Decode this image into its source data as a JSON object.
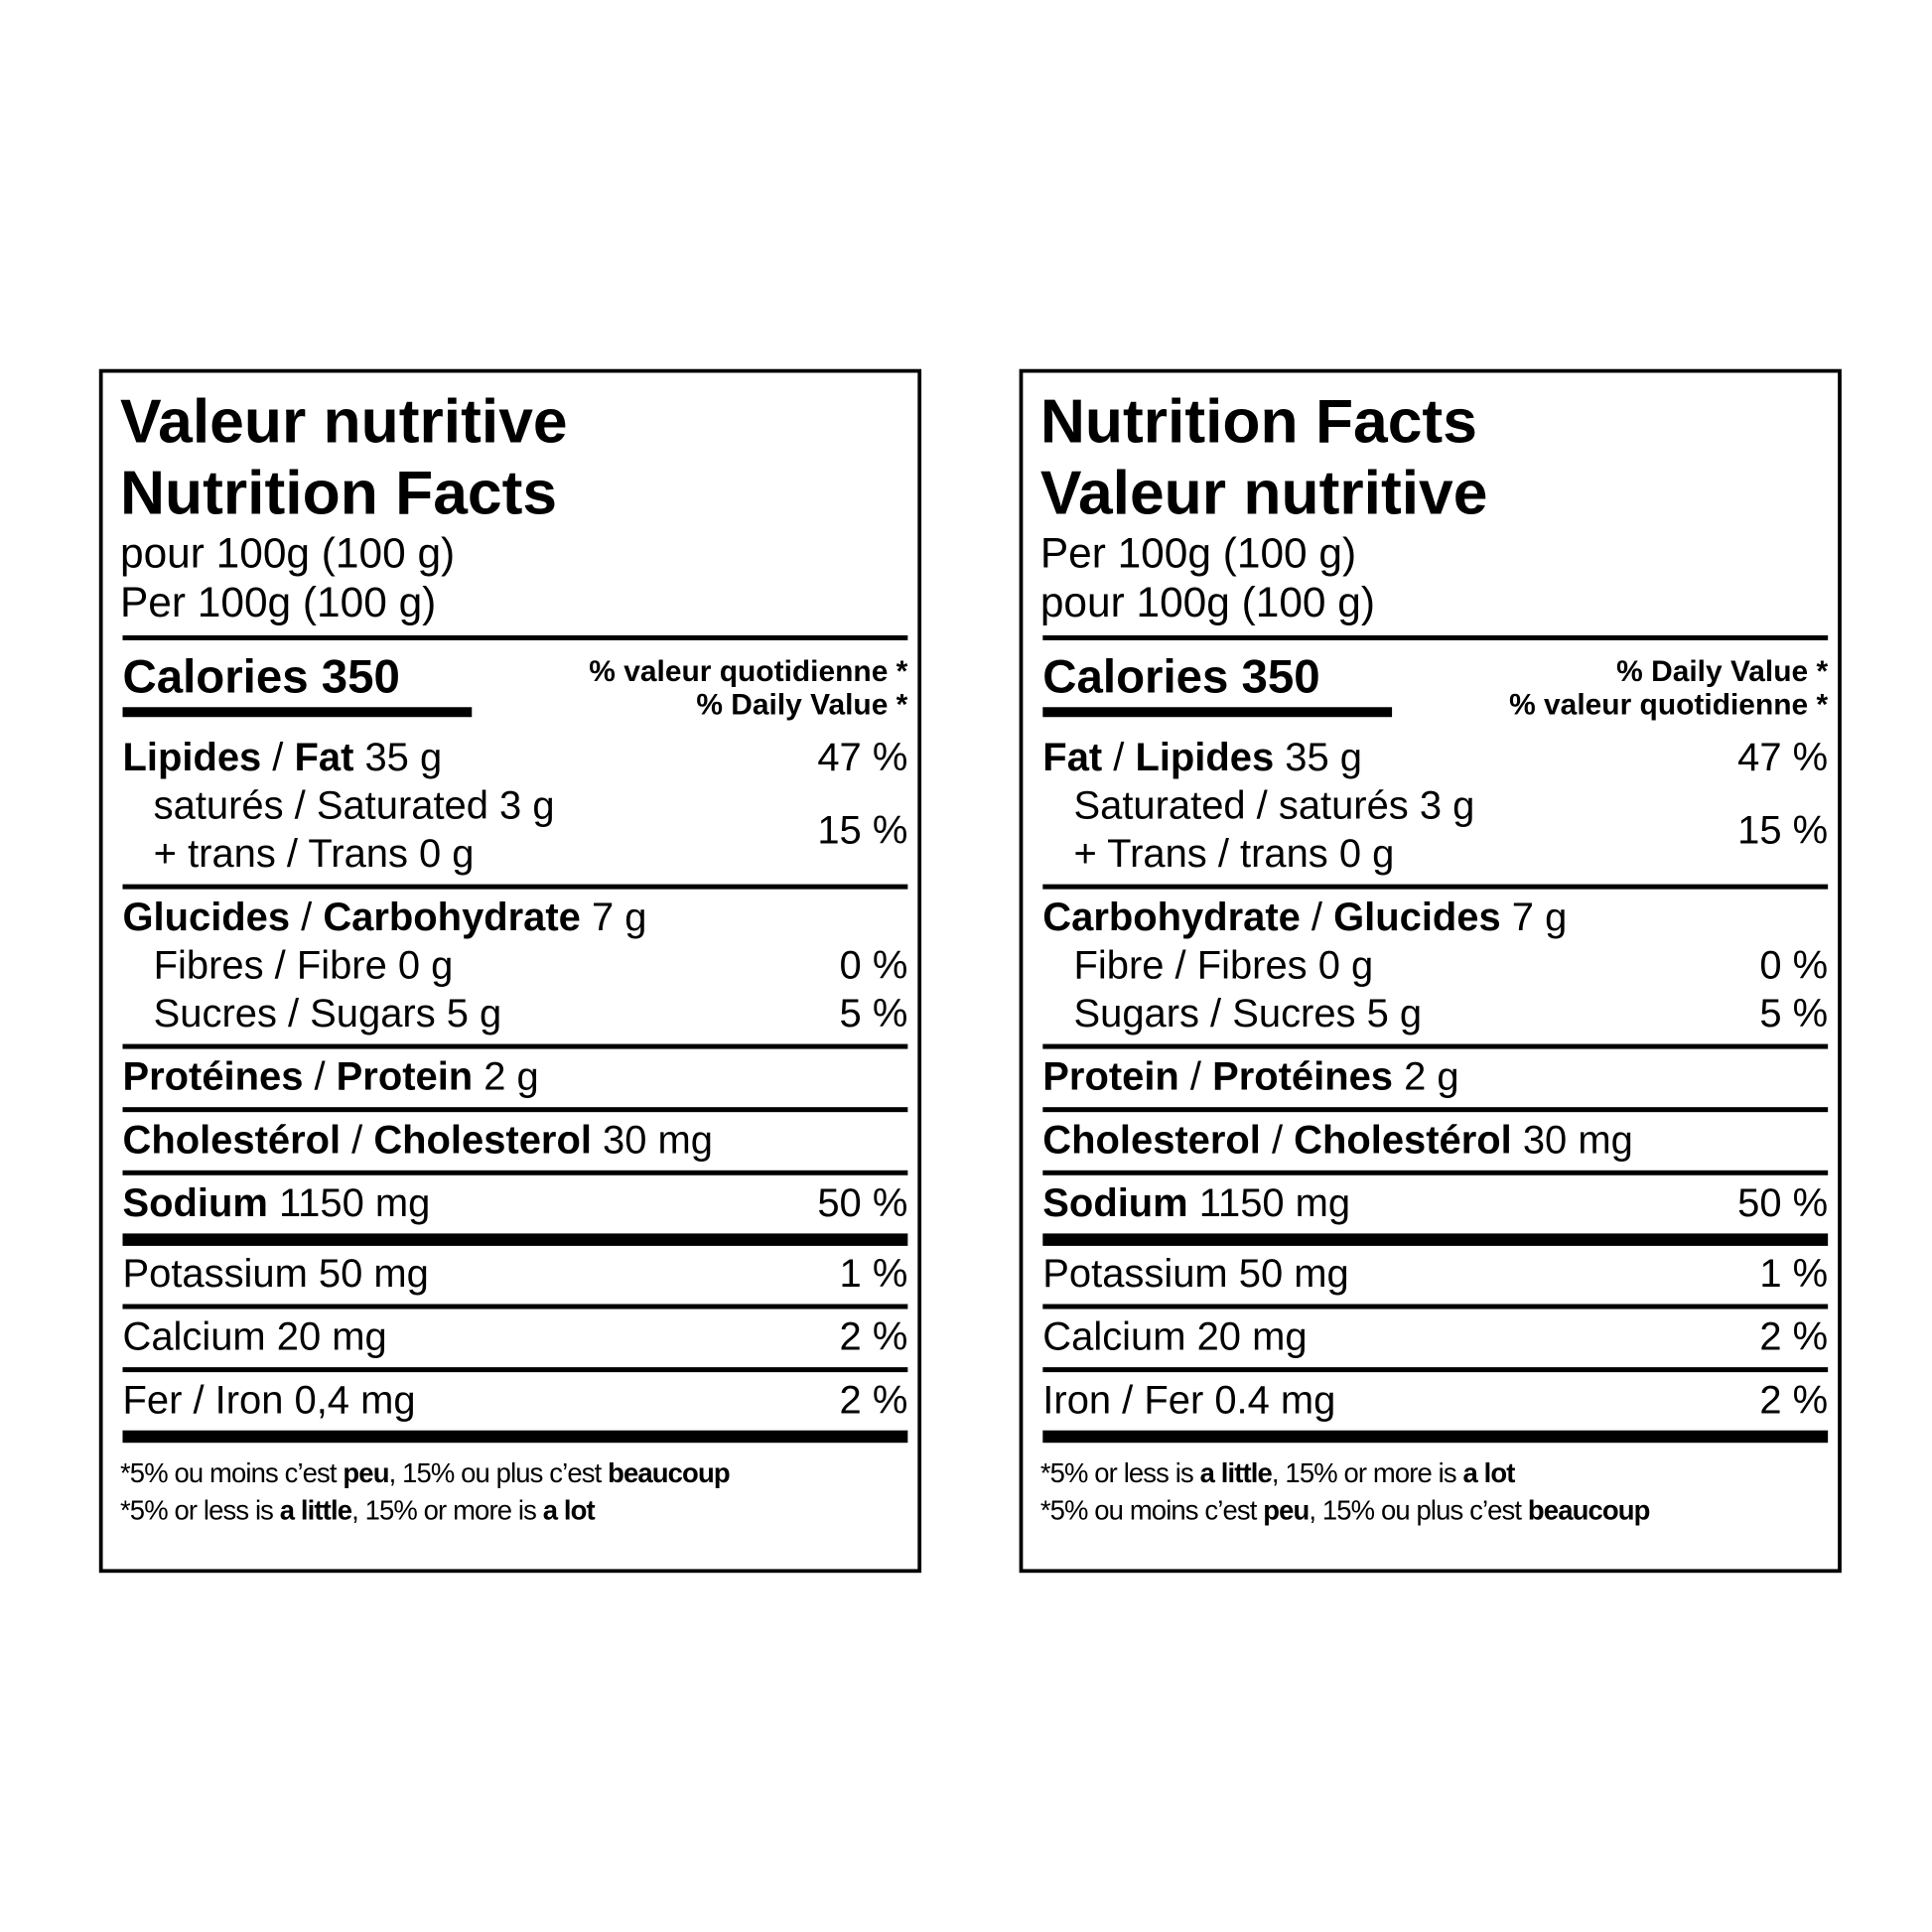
{
  "labels": [
    {
      "title": [
        "Valeur nutritive",
        "Nutrition Facts"
      ],
      "serving": [
        "pour 100g (100 g)",
        "Per 100g (100 g)"
      ],
      "calories": "Calories 350",
      "dv_header": [
        "% valeur quotidienne *",
        "% Daily Value *"
      ],
      "sections": [
        {
          "rule": "thin",
          "entries": [
            {
              "lines": [
                [
                  {
                    "text": "Lipides",
                    "bold": true
                  },
                  {
                    "text": " / "
                  },
                  {
                    "text": "Fat",
                    "bold": true
                  },
                  {
                    "text": " 35 g"
                  }
                ]
              ],
              "dv": "47 %"
            },
            {
              "indent": true,
              "lines": [
                [
                  {
                    "text": "saturés / Saturated 3 g"
                  }
                ],
                [
                  {
                    "text": "+ trans / Trans 0 g"
                  }
                ]
              ],
              "dv": "15 %"
            }
          ]
        },
        {
          "rule": "thin",
          "entries": [
            {
              "lines": [
                [
                  {
                    "text": "Glucides",
                    "bold": true
                  },
                  {
                    "text": " / "
                  },
                  {
                    "text": "Carbohydrate",
                    "bold": true
                  },
                  {
                    "text": " 7 g"
                  }
                ]
              ]
            },
            {
              "indent": true,
              "lines": [
                [
                  {
                    "text": "Fibres / Fibre 0 g"
                  }
                ]
              ],
              "dv": "0 %"
            },
            {
              "indent": true,
              "lines": [
                [
                  {
                    "text": "Sucres / Sugars 5 g"
                  }
                ]
              ],
              "dv": "5 %"
            }
          ]
        },
        {
          "rule": "thin",
          "entries": [
            {
              "lines": [
                [
                  {
                    "text": "Protéines",
                    "bold": true
                  },
                  {
                    "text": " / "
                  },
                  {
                    "text": "Protein",
                    "bold": true
                  },
                  {
                    "text": " 2 g"
                  }
                ]
              ]
            }
          ]
        },
        {
          "rule": "thin",
          "entries": [
            {
              "lines": [
                [
                  {
                    "text": "Cholestérol",
                    "bold": true
                  },
                  {
                    "text": " / "
                  },
                  {
                    "text": "Cholesterol",
                    "bold": true
                  },
                  {
                    "text": " 30 mg"
                  }
                ]
              ]
            }
          ]
        },
        {
          "rule": "thick",
          "entries": [
            {
              "lines": [
                [
                  {
                    "text": "Sodium",
                    "bold": true
                  },
                  {
                    "text": " 1150 mg"
                  }
                ]
              ],
              "dv": "50 %"
            }
          ]
        },
        {
          "rule": "thin",
          "entries": [
            {
              "lines": [
                [
                  {
                    "text": "Potassium 50 mg"
                  }
                ]
              ],
              "dv": "1 %"
            }
          ]
        },
        {
          "rule": "thin",
          "entries": [
            {
              "lines": [
                [
                  {
                    "text": "Calcium 20 mg"
                  }
                ]
              ],
              "dv": "2 %"
            }
          ]
        },
        {
          "rule": "thick",
          "entries": [
            {
              "lines": [
                [
                  {
                    "text": "Fer / Iron 0,4 mg"
                  }
                ]
              ],
              "dv": "2 %"
            }
          ]
        }
      ],
      "footnote": [
        [
          {
            "text": "*5% ou moins c’est "
          },
          {
            "text": "peu",
            "bold": true
          },
          {
            "text": ", 15% ou plus c’est "
          },
          {
            "text": "beaucoup",
            "bold": true
          }
        ],
        [
          {
            "text": "*5% or less is "
          },
          {
            "text": "a little",
            "bold": true
          },
          {
            "text": ", 15% or more is "
          },
          {
            "text": "a lot",
            "bold": true
          }
        ]
      ]
    },
    {
      "title": [
        "Nutrition Facts",
        "Valeur nutritive"
      ],
      "serving": [
        "Per 100g (100 g)",
        "pour 100g (100 g)"
      ],
      "calories": "Calories 350",
      "dv_header": [
        "% Daily Value *",
        "% valeur quotidienne *"
      ],
      "sections": [
        {
          "rule": "thin",
          "entries": [
            {
              "lines": [
                [
                  {
                    "text": "Fat",
                    "bold": true
                  },
                  {
                    "text": " / "
                  },
                  {
                    "text": "Lipides",
                    "bold": true
                  },
                  {
                    "text": " 35 g"
                  }
                ]
              ],
              "dv": "47 %"
            },
            {
              "indent": true,
              "lines": [
                [
                  {
                    "text": "Saturated / saturés 3 g"
                  }
                ],
                [
                  {
                    "text": "+ Trans / trans 0 g"
                  }
                ]
              ],
              "dv": "15 %"
            }
          ]
        },
        {
          "rule": "thin",
          "entries": [
            {
              "lines": [
                [
                  {
                    "text": "Carbohydrate",
                    "bold": true
                  },
                  {
                    "text": " / "
                  },
                  {
                    "text": "Glucides",
                    "bold": true
                  },
                  {
                    "text": " 7 g"
                  }
                ]
              ]
            },
            {
              "indent": true,
              "lines": [
                [
                  {
                    "text": "Fibre / Fibres 0 g"
                  }
                ]
              ],
              "dv": "0 %"
            },
            {
              "indent": true,
              "lines": [
                [
                  {
                    "text": "Sugars / Sucres 5 g"
                  }
                ]
              ],
              "dv": "5 %"
            }
          ]
        },
        {
          "rule": "thin",
          "entries": [
            {
              "lines": [
                [
                  {
                    "text": "Protein",
                    "bold": true
                  },
                  {
                    "text": " / "
                  },
                  {
                    "text": "Protéines",
                    "bold": true
                  },
                  {
                    "text": " 2 g"
                  }
                ]
              ]
            }
          ]
        },
        {
          "rule": "thin",
          "entries": [
            {
              "lines": [
                [
                  {
                    "text": "Cholesterol",
                    "bold": true
                  },
                  {
                    "text": " / "
                  },
                  {
                    "text": "Cholestérol",
                    "bold": true
                  },
                  {
                    "text": " 30 mg"
                  }
                ]
              ]
            }
          ]
        },
        {
          "rule": "thick",
          "entries": [
            {
              "lines": [
                [
                  {
                    "text": "Sodium",
                    "bold": true
                  },
                  {
                    "text": " 1150 mg"
                  }
                ]
              ],
              "dv": "50 %"
            }
          ]
        },
        {
          "rule": "thin",
          "entries": [
            {
              "lines": [
                [
                  {
                    "text": "Potassium 50 mg"
                  }
                ]
              ],
              "dv": "1 %"
            }
          ]
        },
        {
          "rule": "thin",
          "entries": [
            {
              "lines": [
                [
                  {
                    "text": "Calcium 20 mg"
                  }
                ]
              ],
              "dv": "2 %"
            }
          ]
        },
        {
          "rule": "thick",
          "entries": [
            {
              "lines": [
                [
                  {
                    "text": "Iron / Fer 0.4 mg"
                  }
                ]
              ],
              "dv": "2 %"
            }
          ]
        }
      ],
      "footnote": [
        [
          {
            "text": "*5% or less is "
          },
          {
            "text": "a little",
            "bold": true
          },
          {
            "text": ", 15% or more is "
          },
          {
            "text": "a lot",
            "bold": true
          }
        ],
        [
          {
            "text": "*5% ou moins c’est "
          },
          {
            "text": "peu",
            "bold": true
          },
          {
            "text": ", 15% ou plus c’est "
          },
          {
            "text": "beaucoup",
            "bold": true
          }
        ]
      ]
    }
  ]
}
